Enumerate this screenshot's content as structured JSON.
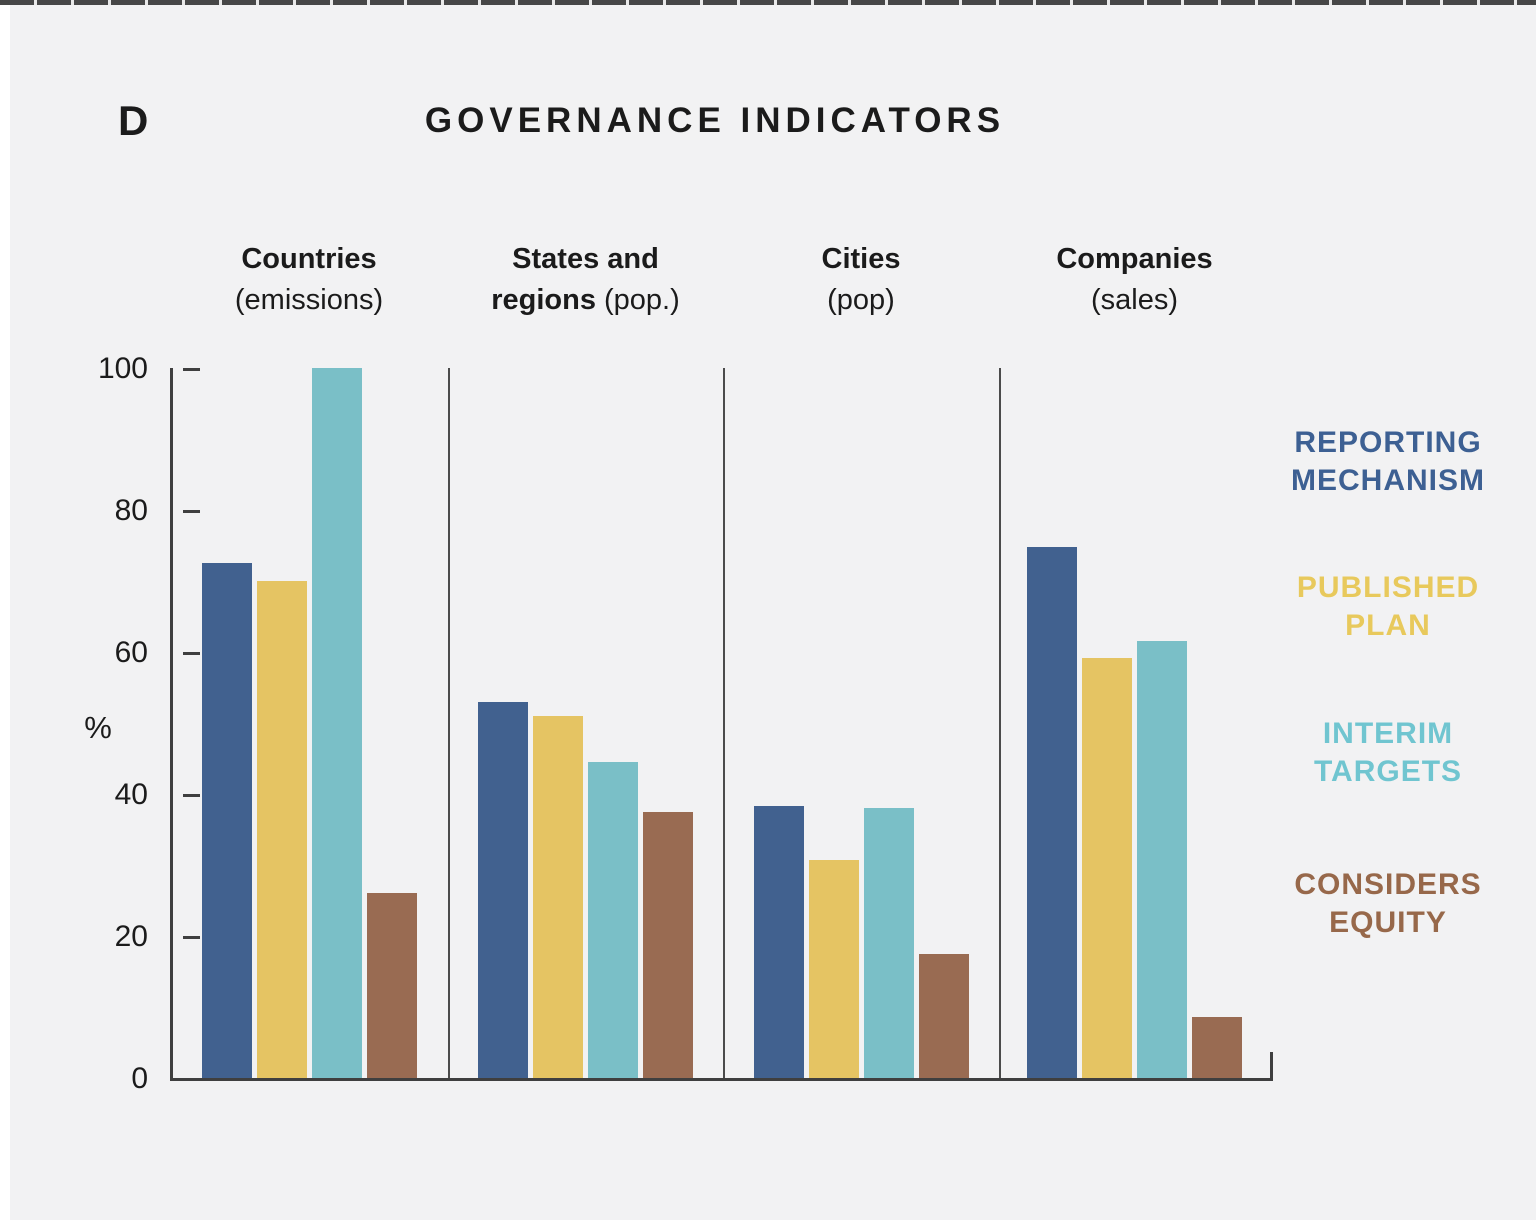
{
  "panel_label": "D",
  "title": "GOVERNANCE INDICATORS",
  "chart_data": {
    "type": "bar",
    "title": "GOVERNANCE INDICATORS",
    "ylabel": "%",
    "ylim": [
      0,
      100
    ],
    "yticks": [
      0,
      20,
      40,
      60,
      80,
      100
    ],
    "grid": false,
    "legend_position": "right",
    "categories": [
      "Countries (emissions)",
      "States and regions (pop.)",
      "Cities (pop)",
      "Companies (sales)"
    ],
    "category_headers": [
      {
        "lines": [
          [
            {
              "text": "Countries",
              "bold": true
            }
          ],
          [
            {
              "text": "(emissions)",
              "bold": false
            }
          ]
        ]
      },
      {
        "lines": [
          [
            {
              "text": "States and",
              "bold": true
            }
          ],
          [
            {
              "text": "regions",
              "bold": true
            },
            {
              "text": " (pop.)",
              "bold": false
            }
          ]
        ]
      },
      {
        "lines": [
          [
            {
              "text": "Cities",
              "bold": true
            }
          ],
          [
            {
              "text": "(pop)",
              "bold": false
            }
          ]
        ]
      },
      {
        "lines": [
          [
            {
              "text": "Companies",
              "bold": true
            }
          ],
          [
            {
              "text": "(sales)",
              "bold": false
            }
          ]
        ]
      }
    ],
    "series": [
      {
        "name": "REPORTING MECHANISM",
        "legend_lines": [
          "REPORTING",
          "MECHANISM"
        ],
        "color": "#41618f",
        "legend_color": "#3d6093",
        "values": [
          72.5,
          53,
          38.3,
          74.8
        ]
      },
      {
        "name": "PUBLISHED PLAN",
        "legend_lines": [
          "PUBLISHED",
          "PLAN"
        ],
        "color": "#e5c463",
        "legend_color": "#e8c95c",
        "values": [
          70,
          51,
          30.7,
          59.2
        ]
      },
      {
        "name": "INTERIM TARGETS",
        "legend_lines": [
          "INTERIM",
          "TARGETS"
        ],
        "color": "#7abfc7",
        "legend_color": "#70c5d0",
        "values": [
          100,
          44.5,
          38,
          61.5
        ]
      },
      {
        "name": "CONSIDERS EQUITY",
        "legend_lines": [
          "CONSIDERS",
          "EQUITY"
        ],
        "color": "#996b52",
        "legend_color": "#97684a",
        "values": [
          26,
          37.5,
          17.5,
          8.6
        ]
      }
    ]
  },
  "colors": {
    "background": "#f2f2f3",
    "axis": "#3f3f3f",
    "separator": "#4b4b4b",
    "text": "#1b1b1b",
    "top_border_dash": "#474747"
  }
}
